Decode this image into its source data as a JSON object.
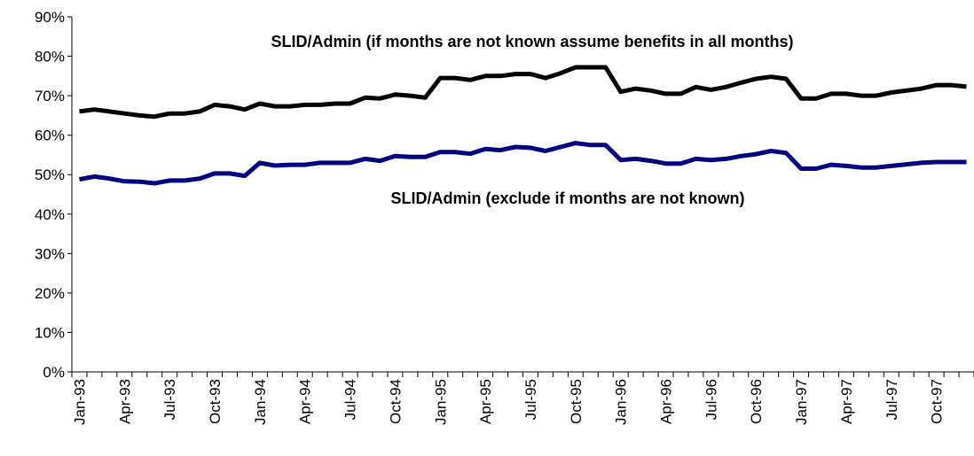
{
  "chart_data": {
    "type": "line",
    "categories": [
      "Jan-93",
      null,
      null,
      "Apr-93",
      null,
      null,
      "Jul-93",
      null,
      null,
      "Oct-93",
      null,
      null,
      "Jan-94",
      null,
      null,
      "Apr-94",
      null,
      null,
      "Jul-94",
      null,
      null,
      "Oct-94",
      null,
      null,
      "Jan-95",
      null,
      null,
      "Apr-95",
      null,
      null,
      "Jul-95",
      null,
      null,
      "Oct-95",
      null,
      null,
      "Jan-96",
      null,
      null,
      "Apr-96",
      null,
      null,
      "Jul-96",
      null,
      null,
      "Oct-96",
      null,
      null,
      "Jan-97",
      null,
      null,
      "Apr-97",
      null,
      null,
      "Jul-97",
      null,
      null,
      "Oct-97",
      null,
      null
    ],
    "series": [
      {
        "name": "SLID/Admin (if months are not known assume benefits in all months)",
        "color": "#000000",
        "values": [
          66,
          66.5,
          66,
          65.5,
          65,
          64.7,
          65.5,
          65.5,
          66,
          67.7,
          67.3,
          66.5,
          68,
          67.3,
          67.3,
          67.7,
          67.7,
          68,
          68,
          69.5,
          69.3,
          70.3,
          70,
          69.5,
          74.5,
          74.5,
          74,
          75,
          75,
          75.5,
          75.5,
          74.5,
          75.7,
          77.2,
          77.2,
          77.2,
          71,
          71.8,
          71.3,
          70.5,
          70.5,
          72.2,
          71.5,
          72.2,
          73.3,
          74.3,
          74.8,
          74.3,
          69.3,
          69.3,
          70.5,
          70.5,
          70,
          70,
          70.8,
          71.3,
          71.8,
          72.7,
          72.7,
          72.3
        ]
      },
      {
        "name": "SLID/Admin (exclude if months are not known)",
        "color": "#000080",
        "values": [
          48.8,
          49.5,
          49,
          48.3,
          48.2,
          47.8,
          48.5,
          48.5,
          49,
          50.3,
          50.3,
          49.7,
          53,
          52.3,
          52.5,
          52.5,
          53,
          53,
          53,
          54,
          53.5,
          54.7,
          54.5,
          54.5,
          55.7,
          55.7,
          55.3,
          56.5,
          56.2,
          57,
          56.8,
          56,
          57,
          58,
          57.5,
          57.5,
          53.7,
          54,
          53.5,
          52.8,
          52.8,
          54,
          53.7,
          54,
          54.7,
          55.2,
          56,
          55.5,
          51.5,
          51.5,
          52.5,
          52.2,
          51.8,
          51.8,
          52.2,
          52.6,
          53,
          53.2,
          53.2,
          53.2
        ]
      }
    ],
    "ylim": [
      0,
      90
    ],
    "yticks": [
      {
        "value": 0,
        "label": "0%"
      },
      {
        "value": 10,
        "label": "10%"
      },
      {
        "value": 20,
        "label": "20%"
      },
      {
        "value": 30,
        "label": "30%"
      },
      {
        "value": 40,
        "label": "40%"
      },
      {
        "value": 50,
        "label": "50%"
      },
      {
        "value": 60,
        "label": "60%"
      },
      {
        "value": 70,
        "label": "70%"
      },
      {
        "value": 80,
        "label": "80%"
      },
      {
        "value": 90,
        "label": "90%"
      }
    ],
    "grid": false
  }
}
